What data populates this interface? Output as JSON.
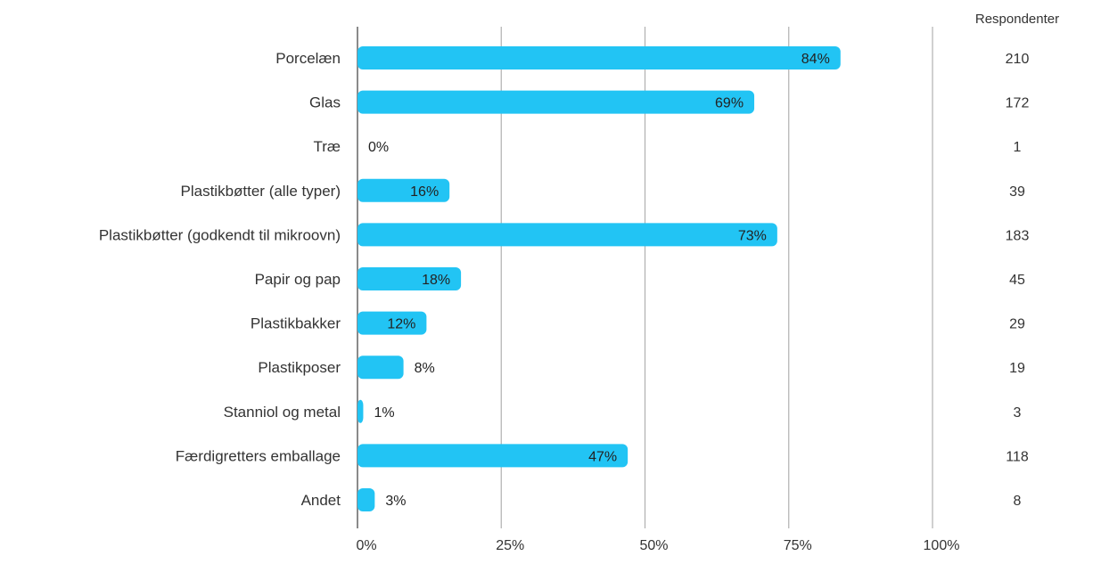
{
  "chart_data": {
    "type": "bar",
    "orientation": "horizontal",
    "categories": [
      "Porcelæn",
      "Glas",
      "Træ",
      "Plastikbøtter (alle typer)",
      "Plastikbøtter (godkendt til mikroovn)",
      "Papir og pap",
      "Plastikbakker",
      "Plastikposer",
      "Stanniol og metal",
      "Færdigretters emballage",
      "Andet"
    ],
    "values": [
      84,
      69,
      0,
      16,
      73,
      18,
      12,
      8,
      1,
      47,
      3
    ],
    "value_labels": [
      "84%",
      "69%",
      "0%",
      "16%",
      "73%",
      "18%",
      "12%",
      "8%",
      "1%",
      "47%",
      "3%"
    ],
    "respondents_header": "Respondenter",
    "respondents": [
      "210",
      "172",
      "1",
      "39",
      "183",
      "45",
      "29",
      "19",
      "3",
      "118",
      "8"
    ],
    "x_ticks": [
      "0%",
      "25%",
      "50%",
      "75%",
      "100%"
    ],
    "xlim": [
      0,
      100
    ],
    "grid": true,
    "bar_color": "#22c4f4",
    "grid_color": "#b0b0b0",
    "axis_color": "#8a8a8a"
  }
}
